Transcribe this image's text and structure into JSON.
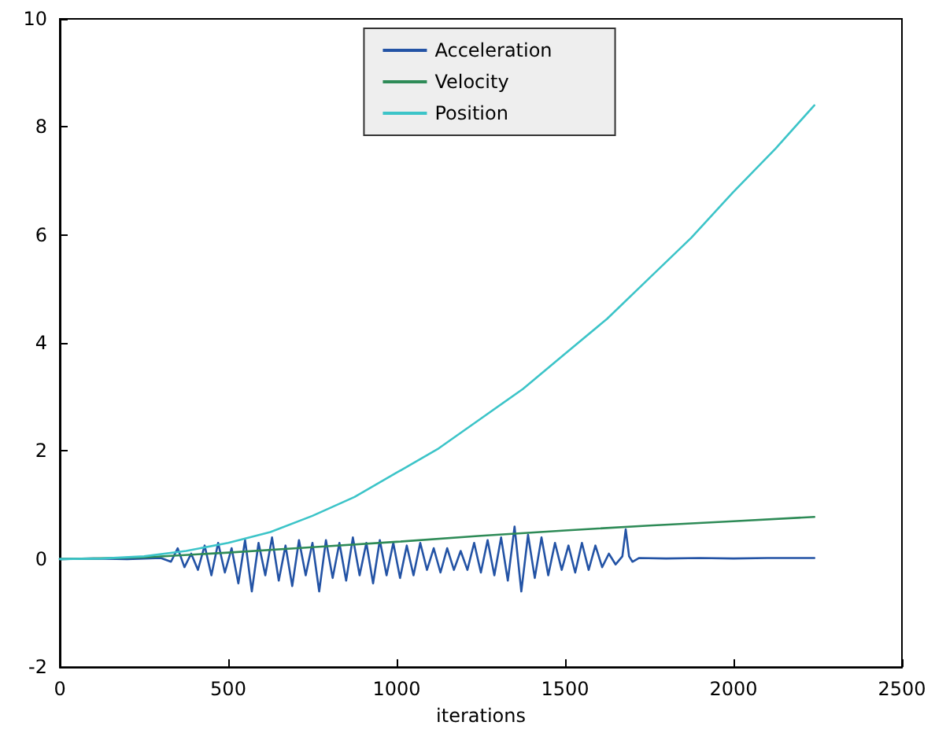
{
  "chart_data": {
    "type": "line",
    "xlabel": "iterations",
    "xlim": [
      0,
      2500
    ],
    "xticks": [
      0,
      500,
      1000,
      1500,
      2000,
      2500
    ],
    "ylim": [
      -2,
      10
    ],
    "yticks": [
      -2,
      0,
      2,
      4,
      6,
      8,
      10
    ],
    "grid": false,
    "legend": "top",
    "marker": "none",
    "line_style": "solid",
    "series": [
      {
        "name": "Acceleration",
        "color": "#2353a5",
        "x": [
          0,
          100,
          200,
          300,
          330,
          350,
          370,
          390,
          410,
          430,
          450,
          470,
          490,
          510,
          530,
          550,
          570,
          590,
          610,
          630,
          650,
          670,
          690,
          710,
          730,
          750,
          770,
          790,
          810,
          830,
          850,
          870,
          890,
          910,
          930,
          950,
          970,
          990,
          1010,
          1030,
          1050,
          1070,
          1090,
          1110,
          1130,
          1150,
          1170,
          1190,
          1210,
          1230,
          1250,
          1270,
          1290,
          1310,
          1330,
          1350,
          1370,
          1390,
          1410,
          1430,
          1450,
          1470,
          1490,
          1510,
          1530,
          1550,
          1570,
          1590,
          1610,
          1630,
          1650,
          1670,
          1680,
          1690,
          1700,
          1720,
          1800,
          1900,
          2000,
          2100,
          2240
        ],
        "values": [
          0,
          0.01,
          0,
          0.02,
          -0.05,
          0.2,
          -0.15,
          0.1,
          -0.2,
          0.25,
          -0.3,
          0.3,
          -0.25,
          0.2,
          -0.45,
          0.35,
          -0.6,
          0.3,
          -0.3,
          0.4,
          -0.4,
          0.25,
          -0.5,
          0.35,
          -0.3,
          0.3,
          -0.6,
          0.35,
          -0.35,
          0.3,
          -0.4,
          0.4,
          -0.3,
          0.3,
          -0.45,
          0.35,
          -0.3,
          0.3,
          -0.35,
          0.25,
          -0.3,
          0.3,
          -0.2,
          0.2,
          -0.25,
          0.2,
          -0.2,
          0.15,
          -0.2,
          0.3,
          -0.25,
          0.35,
          -0.3,
          0.4,
          -0.4,
          0.6,
          -0.6,
          0.45,
          -0.35,
          0.4,
          -0.3,
          0.3,
          -0.2,
          0.25,
          -0.25,
          0.3,
          -0.2,
          0.25,
          -0.15,
          0.1,
          -0.1,
          0.05,
          0.55,
          0.05,
          -0.05,
          0.02,
          0.01,
          0.02,
          0.01,
          0.02,
          0.02
        ]
      },
      {
        "name": "Velocity",
        "color": "#2e8b57",
        "x": [
          0,
          250,
          500,
          750,
          1000,
          1250,
          1500,
          1750,
          2000,
          2240
        ],
        "values": [
          0,
          0.03,
          0.12,
          0.22,
          0.32,
          0.43,
          0.53,
          0.62,
          0.7,
          0.78
        ]
      },
      {
        "name": "Position",
        "color": "#3cc4c8",
        "x": [
          0,
          125,
          250,
          375,
          500,
          625,
          750,
          875,
          1000,
          1125,
          1250,
          1375,
          1500,
          1625,
          1750,
          1875,
          2000,
          2125,
          2240
        ],
        "values": [
          0,
          0.01,
          0.05,
          0.15,
          0.3,
          0.5,
          0.8,
          1.15,
          1.6,
          2.05,
          2.6,
          3.15,
          3.8,
          4.45,
          5.2,
          5.95,
          6.8,
          7.6,
          8.4
        ]
      }
    ]
  }
}
